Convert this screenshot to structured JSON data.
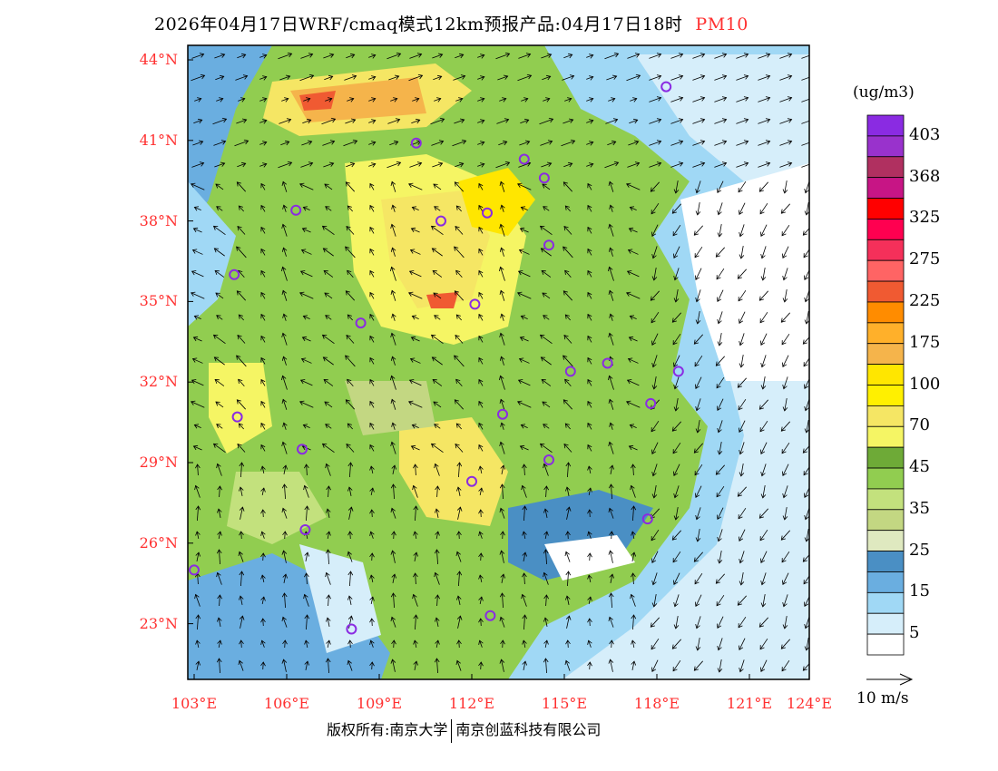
{
  "title": {
    "main": "2026年04月17日WRF/cmaq模式12km预报产品:04月17日18时",
    "species": "PM10"
  },
  "axes": {
    "lat_labels": [
      "44°N",
      "41°N",
      "38°N",
      "35°N",
      "32°N",
      "29°N",
      "26°N",
      "23°N"
    ],
    "lat_values": [
      44,
      41,
      38,
      35,
      32,
      29,
      26,
      23
    ],
    "lon_labels": [
      "103°E",
      "106°E",
      "109°E",
      "112°E",
      "115°E",
      "118°E",
      "121°E",
      "124°E"
    ],
    "lon_values": [
      103,
      106,
      109,
      112,
      115,
      118,
      121,
      124
    ],
    "lon_range": [
      102.8,
      123.0
    ],
    "lat_range": [
      20.9,
      44.5
    ]
  },
  "colorbar": {
    "unit": "(ug/m3)",
    "colors": [
      "#8a2be2",
      "#9932cc",
      "#b03060",
      "#c71585",
      "#ff0000",
      "#ff0050",
      "#f5305a",
      "#ff6464",
      "#f05a32",
      "#ff8c00",
      "#ffb02a",
      "#f5b44b",
      "#ffe600",
      "#fff000",
      "#f5e664",
      "#f5f564",
      "#6eaa37",
      "#91cd50",
      "#c3e17d",
      "#c3d782",
      "#dfe9c0",
      "#4a8fc4",
      "#6aaee0",
      "#a0d8f5",
      "#d6eefa",
      "#ffffff"
    ],
    "labels": [
      "403",
      "368",
      "325",
      "275",
      "225",
      "175",
      "100",
      "70",
      "45",
      "35",
      "25",
      "15",
      "5"
    ]
  },
  "wind_scale": {
    "label": "10 m/s"
  },
  "stations": [
    [
      118.3,
      43.0
    ],
    [
      110.2,
      40.9
    ],
    [
      113.7,
      40.3
    ],
    [
      114.35,
      39.6
    ],
    [
      106.3,
      38.4
    ],
    [
      111.0,
      38.0
    ],
    [
      112.5,
      38.3
    ],
    [
      114.5,
      37.1
    ],
    [
      104.3,
      36.0
    ],
    [
      112.1,
      34.9
    ],
    [
      108.4,
      34.2
    ],
    [
      115.2,
      32.4
    ],
    [
      116.4,
      32.7
    ],
    [
      118.7,
      32.4
    ],
    [
      117.8,
      31.2
    ],
    [
      113.0,
      30.8
    ],
    [
      104.4,
      30.7
    ],
    [
      106.5,
      29.5
    ],
    [
      114.5,
      29.1
    ],
    [
      112.0,
      28.3
    ],
    [
      106.6,
      26.5
    ],
    [
      117.7,
      26.9
    ],
    [
      103.0,
      25.0
    ],
    [
      112.6,
      23.3
    ],
    [
      108.1,
      22.8
    ]
  ],
  "footer": {
    "left": "版权所有:南京大学",
    "right": "南京创蓝科技有限公司"
  }
}
